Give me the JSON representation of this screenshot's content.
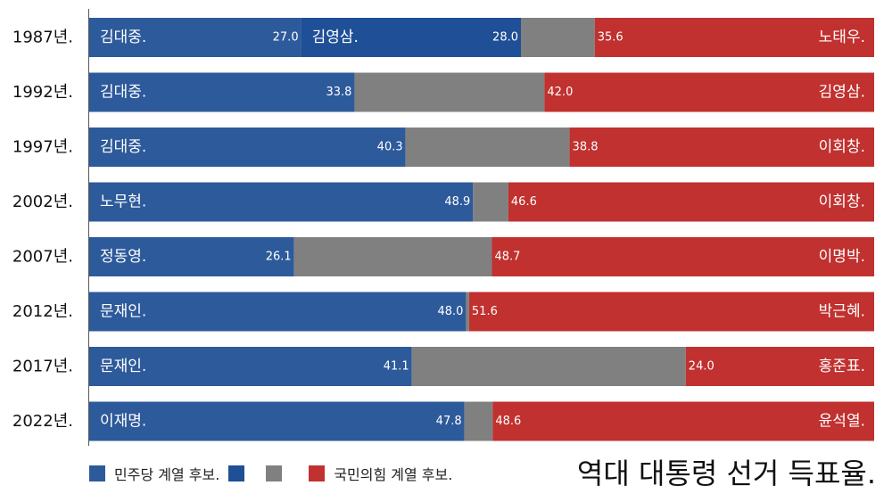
{
  "chart_data": {
    "type": "bar",
    "orientation": "horizontal",
    "stacked": true,
    "title": "역대 대통령 선거 득표율.",
    "years": [
      "1987년.",
      "1992년.",
      "1997년.",
      "2002년.",
      "2007년.",
      "2012년.",
      "2017년.",
      "2022년."
    ],
    "rows": [
      {
        "left": [
          {
            "name": "김대중.",
            "value": 27.0,
            "label": "27.0"
          },
          {
            "name": "김영삼.",
            "value": 28.0,
            "label": "28.0"
          }
        ],
        "right": {
          "name": "노태우.",
          "value": 35.6,
          "label": "35.6"
        }
      },
      {
        "left": [
          {
            "name": "김대중.",
            "value": 33.8,
            "label": "33.8"
          }
        ],
        "right": {
          "name": "김영삼.",
          "value": 42.0,
          "label": "42.0"
        }
      },
      {
        "left": [
          {
            "name": "김대중.",
            "value": 40.3,
            "label": "40.3"
          }
        ],
        "right": {
          "name": "이회창.",
          "value": 38.8,
          "label": "38.8"
        }
      },
      {
        "left": [
          {
            "name": "노무현.",
            "value": 48.9,
            "label": "48.9"
          }
        ],
        "right": {
          "name": "이회창.",
          "value": 46.6,
          "label": "46.6"
        }
      },
      {
        "left": [
          {
            "name": "정동영.",
            "value": 26.1,
            "label": "26.1"
          }
        ],
        "right": {
          "name": "이명박.",
          "value": 48.7,
          "label": "48.7"
        }
      },
      {
        "left": [
          {
            "name": "문재인.",
            "value": 48.0,
            "label": "48.0"
          }
        ],
        "right": {
          "name": "박근혜.",
          "value": 51.6,
          "label": "51.6"
        }
      },
      {
        "left": [
          {
            "name": "문재인.",
            "value": 41.1,
            "label": "41.1"
          }
        ],
        "right": {
          "name": "홍준표.",
          "value": 24.0,
          "label": "24.0"
        }
      },
      {
        "left": [
          {
            "name": "이재명.",
            "value": 47.8,
            "label": "47.8"
          }
        ],
        "right": {
          "name": "윤석열.",
          "value": 48.6,
          "label": "48.6"
        }
      }
    ],
    "xlim": [
      0,
      100
    ],
    "grid": false,
    "legend_position": "bottom-left",
    "legend": [
      {
        "label": "민주당 계열 후보.",
        "color": "#2d5a9a"
      },
      {
        "label": "",
        "color": "#1f4f96"
      },
      {
        "label": "",
        "color": "#808080"
      },
      {
        "label": "국민의힘 계열 후보.",
        "color": "#c0312f"
      }
    ],
    "colors": {
      "democratic": "#2d5a9a",
      "democratic_second": "#1f4f96",
      "other": "#808080",
      "conservative": "#c0312f"
    }
  }
}
